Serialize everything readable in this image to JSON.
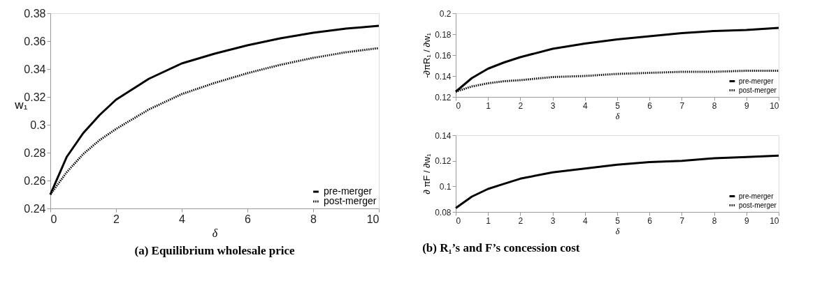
{
  "chart_data": [
    {
      "type": "line",
      "x": [
        0,
        0.5,
        1,
        1.5,
        2,
        3,
        4,
        5,
        6,
        7,
        8,
        9,
        10
      ],
      "xlabel": "δ",
      "ylabel": "w₁",
      "xlim": [
        0,
        10
      ],
      "xticks": [
        0,
        2,
        4,
        6,
        8,
        10
      ],
      "ylim": [
        0.24,
        0.38
      ],
      "yticks": [
        0.24,
        0.26,
        0.28,
        0.3,
        0.32,
        0.34,
        0.36,
        0.38
      ],
      "grid": false,
      "legend": "bottom right",
      "annotations": [
        "(a) Equilibrium wholesale price"
      ],
      "series": [
        {
          "name": "pre-merger",
          "color": "#000000",
          "line_style": "solid",
          "values": [
            0.25,
            0.277,
            0.294,
            0.307,
            0.318,
            0.333,
            0.344,
            0.351,
            0.357,
            0.362,
            0.366,
            0.369,
            0.371
          ]
        },
        {
          "name": "post-merger",
          "color": "#000000",
          "line_style": "dotted",
          "values": [
            0.25,
            0.266,
            0.279,
            0.289,
            0.297,
            0.311,
            0.322,
            0.33,
            0.337,
            0.343,
            0.348,
            0.352,
            0.355
          ]
        }
      ]
    },
    {
      "type": "line",
      "x": [
        0,
        0.5,
        1,
        1.5,
        2,
        3,
        4,
        5,
        6,
        7,
        8,
        9,
        10
      ],
      "xlabel": "δ",
      "ylabel": "-∂πR₁ / ∂w₁",
      "xlim": [
        0,
        10
      ],
      "xticks": [
        0,
        1,
        2,
        3,
        4,
        5,
        6,
        7,
        8,
        9,
        10
      ],
      "ylim": [
        0.12,
        0.2
      ],
      "yticks": [
        0.12,
        0.14,
        0.16,
        0.18,
        0.2
      ],
      "grid": false,
      "legend": "bottom right",
      "series": [
        {
          "name": "pre-merger",
          "color": "#000000",
          "line_style": "solid",
          "values": [
            0.125,
            0.138,
            0.147,
            0.153,
            0.158,
            0.166,
            0.171,
            0.175,
            0.178,
            0.181,
            0.183,
            0.184,
            0.186
          ]
        },
        {
          "name": "post-merger",
          "color": "#000000",
          "line_style": "dotted",
          "values": [
            0.125,
            0.13,
            0.133,
            0.135,
            0.136,
            0.139,
            0.14,
            0.142,
            0.143,
            0.144,
            0.144,
            0.145,
            0.145
          ]
        }
      ]
    },
    {
      "type": "line",
      "x": [
        0,
        0.5,
        1,
        1.5,
        2,
        3,
        4,
        5,
        6,
        7,
        8,
        9,
        10
      ],
      "xlabel": "δ",
      "ylabel": "∂ πF / ∂w₁",
      "xlim": [
        0,
        10
      ],
      "xticks": [
        0,
        1,
        2,
        3,
        4,
        5,
        6,
        7,
        8,
        9,
        10
      ],
      "ylim": [
        0.08,
        0.14
      ],
      "yticks": [
        0.08,
        0.1,
        0.12,
        0.14
      ],
      "grid": false,
      "legend": "bottom right",
      "annotations": [
        "(b) R₁’s and F’s concession cost"
      ],
      "series": [
        {
          "name": "pre-merger",
          "color": "#000000",
          "line_style": "solid",
          "values": [
            0.083,
            0.092,
            0.098,
            0.102,
            0.106,
            0.111,
            0.114,
            0.117,
            0.119,
            0.12,
            0.122,
            0.123,
            0.124
          ]
        },
        {
          "name": "post-merger",
          "color": "#000000",
          "line_style": "dotted",
          "values": [
            null,
            null,
            null,
            null,
            null,
            null,
            null,
            null,
            null,
            null,
            null,
            null,
            null
          ]
        }
      ]
    }
  ]
}
